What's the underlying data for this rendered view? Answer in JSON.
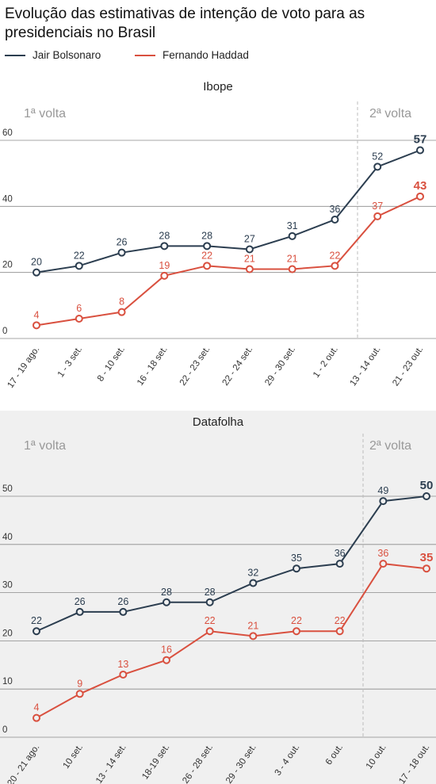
{
  "title": "Evolução das estimativas de intenção de voto para as presidenciais no Brasil",
  "colors": {
    "bolsonaro": "#2c3e50",
    "haddad": "#d9503f"
  },
  "legend": [
    {
      "name": "Jair Bolsonaro",
      "color": "#2c3e50"
    },
    {
      "name": "Fernando Haddad",
      "color": "#d9503f"
    }
  ],
  "chart_data": [
    {
      "type": "line",
      "title": "Ibope",
      "round_labels": [
        "1ª volta",
        "2ª volta"
      ],
      "categories": [
        "17 - 19 ago.",
        "1 - 3 set.",
        "8 - 10 set.",
        "16 - 18 set.",
        "22 - 23 set.",
        "22 - 24 set.",
        "29 - 30 set.",
        "1 - 2 out.",
        "13 - 14 out.",
        "21 - 23 out."
      ],
      "series": [
        {
          "name": "Jair Bolsonaro",
          "color": "#2c3e50",
          "values": [
            20,
            22,
            26,
            28,
            28,
            27,
            31,
            36,
            52,
            57
          ]
        },
        {
          "name": "Fernando Haddad",
          "color": "#d9503f",
          "values": [
            4,
            6,
            8,
            19,
            22,
            21,
            21,
            22,
            37,
            43
          ]
        }
      ],
      "yticks": [
        0,
        20,
        40,
        60
      ],
      "ylim": [
        0,
        60
      ],
      "grid": true,
      "second_round_start_index": 8
    },
    {
      "type": "line",
      "title": "Datafolha",
      "round_labels": [
        "1ª volta",
        "2ª volta"
      ],
      "categories": [
        "20 - 21 ago.",
        "10 set.",
        "13 - 14 set.",
        "18-19 set.",
        "26 - 28 set.",
        "29 - 30 set.",
        "3 - 4 out.",
        "6 out.",
        "10 out.",
        "17 - 18 out."
      ],
      "series": [
        {
          "name": "Jair Bolsonaro",
          "color": "#2c3e50",
          "values": [
            22,
            26,
            26,
            28,
            28,
            32,
            35,
            36,
            49,
            50
          ]
        },
        {
          "name": "Fernando Haddad",
          "color": "#d9503f",
          "values": [
            4,
            9,
            13,
            16,
            22,
            21,
            22,
            22,
            36,
            35
          ]
        }
      ],
      "yticks": [
        0,
        10,
        20,
        30,
        40,
        50
      ],
      "ylim": [
        0,
        50
      ],
      "grid": true,
      "second_round_start_index": 8
    }
  ]
}
